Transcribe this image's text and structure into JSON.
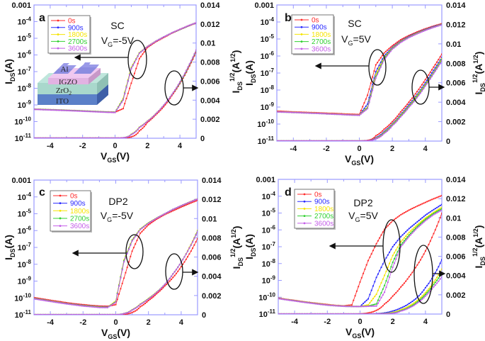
{
  "legend_names": [
    "0s",
    "900s",
    "1800s",
    "2700s",
    "3600s"
  ],
  "colors": {
    "0s": "#ff2a2a",
    "900s": "#2a2aff",
    "1800s": "#f5e400",
    "2700s": "#30d030",
    "3600s": "#c45ee8",
    "frame": "#9a9aff"
  },
  "inset": {
    "layers": [
      "Al",
      "IGZO",
      "ZrO",
      "ITO"
    ],
    "zro_sub": "2"
  },
  "chart_data": [
    {
      "type": "line",
      "panel": "a",
      "material": "SC",
      "condition": {
        "var": "V",
        "sub": "G",
        "rest": "=-5V"
      },
      "xlabel": {
        "main": "V",
        "sub": "GS",
        "rest": "(V)"
      },
      "ylabel_left": {
        "main": "I",
        "sub": "DS",
        "rest": "(A)"
      },
      "ylabel_right": {
        "main": "I",
        "sub": "DS",
        "sup": "1/2",
        "rest": "(A",
        "sup2": "1/2",
        "end": ")"
      },
      "xlim": [
        -5,
        5
      ],
      "ylim_left": [
        1e-11,
        0.001
      ],
      "ylim_right": [
        0,
        0.014
      ],
      "left_scale": "log",
      "x_ticks": [
        "-4",
        "-2",
        "0",
        "2",
        "4"
      ],
      "left_ticks": [
        {
          "base": "0.001"
        },
        {
          "base": "10",
          "exp": "-4"
        },
        {
          "base": "10",
          "exp": "-5"
        },
        {
          "base": "10",
          "exp": "-6"
        },
        {
          "base": "10",
          "exp": "-7"
        },
        {
          "base": "10",
          "exp": "-8"
        },
        {
          "base": "10",
          "exp": "-9"
        },
        {
          "base": "10",
          "exp": "-10"
        },
        {
          "base": "10",
          "exp": "-11"
        }
      ],
      "right_ticks": [
        "0.014",
        "0.012",
        "0.01",
        "0.008",
        "0.006",
        "0.004",
        "0.002",
        "0"
      ],
      "x": [
        -5,
        -4.5,
        -4,
        -3.5,
        -3,
        -2.5,
        -2,
        -1.5,
        -1,
        -0.5,
        0,
        0.5,
        1,
        1.5,
        2,
        2.5,
        3,
        3.5,
        4,
        4.5,
        5
      ],
      "series": [
        {
          "name": "0s",
          "values": [
            5.6e-10,
            5.4e-10,
            5.2e-10,
            5e-10,
            4.8e-10,
            4.6e-10,
            4.4e-10,
            4.2e-10,
            4e-10,
            3.8e-10,
            3.7e-10,
            6e-10,
            2e-08,
            6e-07,
            2.8e-06,
            6e-06,
            1.1e-05,
            2e-05,
            3.3e-05,
            5.3e-05,
            8.2e-05
          ]
        },
        {
          "name": "900s",
          "values": [
            5.5e-10,
            5.3e-10,
            5.1e-10,
            4.9e-10,
            4.7e-10,
            4.5e-10,
            4.3e-10,
            4.1e-10,
            3.9e-10,
            3.7e-10,
            3.6e-10,
            2e-09,
            1.5e-07,
            1.3e-06,
            3.2e-06,
            6.5e-06,
            1.2e-05,
            2.1e-05,
            3.4e-05,
            5.5e-05,
            8.5e-05
          ]
        },
        {
          "name": "1800s",
          "values": [
            5.5e-10,
            5.3e-10,
            5.1e-10,
            4.9e-10,
            4.7e-10,
            4.5e-10,
            4.3e-10,
            4.1e-10,
            3.9e-10,
            3.7e-10,
            3.6e-10,
            2.5e-09,
            1.8e-07,
            1.35e-06,
            3.3e-06,
            6.6e-06,
            1.2e-05,
            2.1e-05,
            3.5e-05,
            5.6e-05,
            8.6e-05
          ]
        },
        {
          "name": "2700s",
          "values": [
            5.5e-10,
            5.3e-10,
            5.1e-10,
            4.9e-10,
            4.7e-10,
            4.5e-10,
            4.3e-10,
            4.1e-10,
            3.9e-10,
            3.7e-10,
            3.6e-10,
            2.2e-09,
            1.6e-07,
            1.3e-06,
            3.2e-06,
            6.5e-06,
            1.2e-05,
            2.1e-05,
            3.4e-05,
            5.5e-05,
            8.5e-05
          ]
        },
        {
          "name": "3600s",
          "values": [
            5.4e-10,
            5.2e-10,
            5e-10,
            4.8e-10,
            4.6e-10,
            4.4e-10,
            4.2e-10,
            4e-10,
            3.8e-10,
            3.6e-10,
            3.5e-10,
            2e-09,
            1.5e-07,
            1.25e-06,
            3.2e-06,
            6.5e-06,
            1.2e-05,
            2.1e-05,
            3.5e-05,
            5.6e-05,
            8.6e-05
          ]
        }
      ]
    },
    {
      "type": "line",
      "panel": "b",
      "material": "SC",
      "condition": {
        "var": "V",
        "sub": "G",
        "rest": "=5V"
      },
      "xlabel": {
        "main": "V",
        "sub": "GS",
        "rest": "(V)"
      },
      "ylabel_left": {
        "main": "I",
        "sub": "DS",
        "rest": "(A)"
      },
      "ylabel_right": {
        "main": "I",
        "sub": "DS",
        "sup": "1/2",
        "rest": "(A",
        "sup2": "1/2",
        "end": ")"
      },
      "xlim": [
        -5,
        5
      ],
      "ylim_left": [
        1e-11,
        0.001
      ],
      "ylim_right": [
        0,
        0.014
      ],
      "left_scale": "log",
      "x_ticks": [
        "-4",
        "-2",
        "0",
        "2",
        "4"
      ],
      "left_ticks": [
        {
          "base": "0.001"
        },
        {
          "base": "10",
          "exp": "-4"
        },
        {
          "base": "10",
          "exp": "-5"
        },
        {
          "base": "10",
          "exp": "-6"
        },
        {
          "base": "10",
          "exp": "-7"
        },
        {
          "base": "10",
          "exp": "-8"
        },
        {
          "base": "10",
          "exp": "-9"
        },
        {
          "base": "10",
          "exp": "-10"
        },
        {
          "base": "10",
          "exp": "-11"
        }
      ],
      "right_ticks": [
        "0.014",
        "0.012",
        "0.01",
        "0.008",
        "0.006",
        "0.004",
        "0.002",
        "0"
      ],
      "x": [
        -5,
        -4.5,
        -4,
        -3.5,
        -3,
        -2.5,
        -2,
        -1.5,
        -1,
        -0.5,
        0,
        0.5,
        1,
        1.5,
        2,
        2.5,
        3,
        3.5,
        4,
        4.5,
        5
      ],
      "series": [
        {
          "name": "0s",
          "values": [
            5.8e-10,
            5.5e-10,
            5.2e-10,
            5e-10,
            4.8e-10,
            4.6e-10,
            4.4e-10,
            4.2e-10,
            4e-10,
            3.8e-10,
            3.7e-10,
            5e-09,
            3e-07,
            1.5e-06,
            4e-06,
            9e-06,
            1.6e-05,
            2.6e-05,
            4e-05,
            5.8e-05,
            8e-05
          ]
        },
        {
          "name": "900s",
          "values": [
            5.3e-10,
            5.1e-10,
            4.9e-10,
            4.7e-10,
            4.5e-10,
            4.3e-10,
            4.1e-10,
            3.9e-10,
            3.7e-10,
            3.5e-10,
            3.4e-10,
            1.5e-09,
            1.2e-07,
            1e-06,
            3.2e-06,
            7.5e-06,
            1.4e-05,
            2.3e-05,
            3.6e-05,
            5.3e-05,
            7.4e-05
          ]
        },
        {
          "name": "1800s",
          "values": [
            5.3e-10,
            5.1e-10,
            4.9e-10,
            4.7e-10,
            4.5e-10,
            4.3e-10,
            4.1e-10,
            3.9e-10,
            3.7e-10,
            3.5e-10,
            3.4e-10,
            1e-09,
            8e-08,
            8e-07,
            2.9e-06,
            7e-06,
            1.3e-05,
            2.2e-05,
            3.4e-05,
            5e-05,
            7.2e-05
          ]
        },
        {
          "name": "2700s",
          "values": [
            5.2e-10,
            5e-10,
            4.8e-10,
            4.6e-10,
            4.4e-10,
            4.2e-10,
            4e-10,
            3.8e-10,
            3.6e-10,
            3.4e-10,
            3.3e-10,
            9e-10,
            6e-08,
            7e-07,
            2.7e-06,
            6.6e-06,
            1.25e-05,
            2.1e-05,
            3.3e-05,
            4.9e-05,
            7e-05
          ]
        },
        {
          "name": "3600s",
          "values": [
            5.2e-10,
            5e-10,
            4.8e-10,
            4.6e-10,
            4.4e-10,
            4.2e-10,
            4e-10,
            3.8e-10,
            3.6e-10,
            3.4e-10,
            3.3e-10,
            8e-10,
            5e-08,
            6e-07,
            2.5e-06,
            6.2e-06,
            1.2e-05,
            2e-05,
            3.2e-05,
            4.8e-05,
            6.8e-05
          ]
        }
      ]
    },
    {
      "type": "line",
      "panel": "c",
      "material": "DP2",
      "condition": {
        "var": "V",
        "sub": "G",
        "rest": "=-5V"
      },
      "xlabel": {
        "main": "V",
        "sub": "GS",
        "rest": "(V)"
      },
      "ylabel_left": {
        "main": "I",
        "sub": "DS",
        "rest": "(A)"
      },
      "ylabel_right": {
        "main": "I",
        "sub": "DS",
        "sup": "1/2",
        "rest": "(A",
        "sup2": "1/2",
        "end": ")"
      },
      "xlim": [
        -5,
        5
      ],
      "ylim_left": [
        1e-11,
        0.001
      ],
      "ylim_right": [
        0,
        0.014
      ],
      "left_scale": "log",
      "x_ticks": [
        "-4",
        "-2",
        "0",
        "2",
        "4"
      ],
      "left_ticks": [
        {
          "base": "0.001"
        },
        {
          "base": "10",
          "exp": "-4"
        },
        {
          "base": "10",
          "exp": "-5"
        },
        {
          "base": "10",
          "exp": "-6"
        },
        {
          "base": "10",
          "exp": "-7"
        },
        {
          "base": "10",
          "exp": "-8"
        },
        {
          "base": "10",
          "exp": "-9"
        },
        {
          "base": "10",
          "exp": "-10"
        },
        {
          "base": "10",
          "exp": "-11"
        }
      ],
      "right_ticks": [
        "0.014",
        "0.012",
        "0.01",
        "0.008",
        "0.006",
        "0.004",
        "0.002",
        "0"
      ],
      "x": [
        -5,
        -4.5,
        -4,
        -3.5,
        -3,
        -2.5,
        -2,
        -1.5,
        -1,
        -0.5,
        0,
        0.5,
        1,
        1.5,
        2,
        2.5,
        3,
        3.5,
        4,
        4.5,
        5
      ],
      "series": [
        {
          "name": "0s",
          "values": [
            1.05e-10,
            8.8e-11,
            7.3e-11,
            6.2e-11,
            5.2e-11,
            4.5e-11,
            4e-11,
            3.6e-11,
            3.3e-11,
            3.2e-11,
            4e-11,
            1.5e-09,
            6e-08,
            7e-07,
            2.2e-06,
            4.8e-06,
            9e-06,
            1.5e-05,
            2.5e-05,
            4e-05,
            6.3e-05
          ]
        },
        {
          "name": "900s",
          "values": [
            9.5e-11,
            8e-11,
            6.6e-11,
            5.6e-11,
            4.7e-11,
            4.1e-11,
            3.6e-11,
            3.3e-11,
            3e-11,
            2.9e-11,
            6e-11,
            1.5e-08,
            2.5e-07,
            1.2e-06,
            2.8e-06,
            5.5e-06,
            1e-05,
            1.8e-05,
            3e-05,
            4.8e-05,
            7.5e-05
          ]
        },
        {
          "name": "1800s",
          "values": [
            9.3e-11,
            7.8e-11,
            6.5e-11,
            5.5e-11,
            4.6e-11,
            4e-11,
            3.5e-11,
            3.2e-11,
            2.9e-11,
            2.8e-11,
            6.5e-11,
            1.8e-08,
            2.8e-07,
            1.25e-06,
            2.9e-06,
            5.6e-06,
            1e-05,
            1.8e-05,
            3e-05,
            4.9e-05,
            7.7e-05
          ]
        },
        {
          "name": "2700s",
          "values": [
            9e-11,
            7.6e-11,
            6.3e-11,
            5.3e-11,
            4.5e-11,
            3.9e-11,
            3.4e-11,
            3.1e-11,
            2.8e-11,
            2.7e-11,
            6e-11,
            1.6e-08,
            2.6e-07,
            1.2e-06,
            2.8e-06,
            5.5e-06,
            1e-05,
            1.8e-05,
            3e-05,
            4.8e-05,
            7.6e-05
          ]
        },
        {
          "name": "3600s",
          "values": [
            8.8e-11,
            7.4e-11,
            6.2e-11,
            5.2e-11,
            4.4e-11,
            3.8e-11,
            3.3e-11,
            3e-11,
            2.7e-11,
            2.7e-11,
            5.5e-11,
            1.4e-08,
            2.4e-07,
            1.15e-06,
            2.7e-06,
            5.4e-06,
            1e-05,
            1.8e-05,
            3e-05,
            4.8e-05,
            7.5e-05
          ]
        }
      ]
    },
    {
      "type": "line",
      "panel": "d",
      "material": "DP2",
      "condition": {
        "var": "V",
        "sub": "G",
        "rest": "=5V"
      },
      "xlabel": {
        "main": "V",
        "sub": "GS",
        "rest": "(V)"
      },
      "ylabel_left": {
        "main": "I",
        "sub": "DS",
        "rest": "(A)"
      },
      "ylabel_right": {
        "main": "I",
        "sub": "DS",
        "sup": "1/2",
        "rest": "(A",
        "sup2": "1/2",
        "end": ")"
      },
      "xlim": [
        -5,
        5
      ],
      "ylim_left": [
        1e-11,
        0.001
      ],
      "ylim_right": [
        0,
        0.014
      ],
      "left_scale": "log",
      "x_ticks": [
        "-4",
        "-2",
        "0",
        "2",
        "4"
      ],
      "left_ticks": [
        {
          "base": "0.001"
        },
        {
          "base": "10",
          "exp": "-4"
        },
        {
          "base": "10",
          "exp": "-5"
        },
        {
          "base": "10",
          "exp": "-6"
        },
        {
          "base": "10",
          "exp": "-7"
        },
        {
          "base": "10",
          "exp": "-8"
        },
        {
          "base": "10",
          "exp": "-9"
        },
        {
          "base": "10",
          "exp": "-10"
        },
        {
          "base": "10",
          "exp": "-11"
        }
      ],
      "right_ticks": [
        "0.014",
        "0.012",
        "0.01",
        "0.008",
        "0.006",
        "0.004",
        "0.002",
        "0"
      ],
      "x": [
        -5,
        -4.5,
        -4,
        -3.5,
        -3,
        -2.5,
        -2,
        -1.5,
        -1,
        -0.5,
        0,
        0.5,
        1,
        1.5,
        2,
        2.5,
        3,
        3.5,
        4,
        4.5,
        5
      ],
      "series": [
        {
          "name": "0s",
          "values": [
            9e-11,
            7.5e-11,
            6.5e-11,
            5.5e-11,
            4.8e-11,
            4.2e-11,
            3.7e-11,
            3.3e-11,
            3.1e-11,
            3.5e-11,
            8e-10,
            1.5e-08,
            1.5e-07,
            1.1e-06,
            3.5e-06,
            8e-06,
            1.5e-05,
            2.6e-05,
            4.3e-05,
            7e-05,
            0.00011
          ]
        },
        {
          "name": "900s",
          "values": [
            8.5e-11,
            7.2e-11,
            6.2e-11,
            5.3e-11,
            4.6e-11,
            4e-11,
            3.5e-11,
            3.2e-11,
            3e-11,
            2.9e-11,
            2.8e-11,
            8e-11,
            1.5e-09,
            1.5e-08,
            1e-07,
            4e-07,
            1.2e-06,
            3e-06,
            7.5e-06,
            1.6e-05,
            3.2e-05
          ]
        },
        {
          "name": "1800s",
          "values": [
            8.5e-11,
            7.2e-11,
            6.2e-11,
            5.3e-11,
            4.6e-11,
            4e-11,
            3.5e-11,
            3.2e-11,
            3e-11,
            2.9e-11,
            2.8e-11,
            3.5e-11,
            1.5e-10,
            2e-09,
            3e-08,
            2e-07,
            7e-07,
            2e-06,
            5e-06,
            1.1e-05,
            2.2e-05
          ]
        },
        {
          "name": "2700s",
          "values": [
            8.4e-11,
            7.1e-11,
            6.1e-11,
            5.2e-11,
            4.5e-11,
            3.9e-11,
            3.4e-11,
            3.1e-11,
            2.9e-11,
            2.8e-11,
            2.8e-11,
            3e-11,
            4e-11,
            5e-10,
            1.2e-08,
            1.3e-07,
            5e-07,
            1.6e-06,
            4.2e-06,
            9.5e-06,
            1.8e-05
          ]
        },
        {
          "name": "3600s",
          "values": [
            8.3e-11,
            7e-11,
            6e-11,
            5.1e-11,
            4.4e-11,
            3.8e-11,
            3.4e-11,
            3.1e-11,
            2.9e-11,
            2.8e-11,
            2.8e-11,
            2.9e-11,
            3e-11,
            2e-10,
            6e-09,
            1e-07,
            4e-07,
            1.3e-06,
            3.5e-06,
            8e-06,
            1.5e-05
          ]
        }
      ]
    }
  ]
}
